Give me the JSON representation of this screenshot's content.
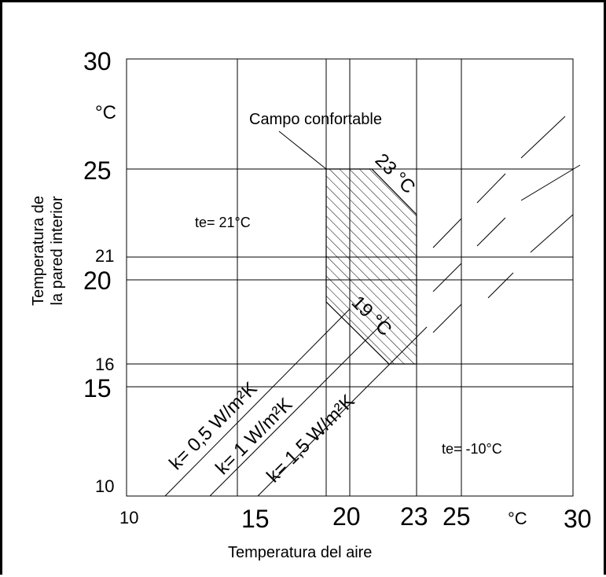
{
  "chart_data": {
    "type": "diagram",
    "xlabel": "Temperatura del aire",
    "ylabel_line1": "Temperatura de",
    "ylabel_line2": "la pared interior",
    "y_unit": "°C",
    "x_unit": "°C",
    "xlim": [
      10,
      30
    ],
    "ylim": [
      10,
      30
    ],
    "x_tick_labels": {
      "t10": "10",
      "t15": "15",
      "t20": "20",
      "t23": "23",
      "t25": "25",
      "t30": "30"
    },
    "y_tick_labels": {
      "t10": "10",
      "t15": "15",
      "t16": "16",
      "t20": "20",
      "t21": "21",
      "t25": "25",
      "t30": "30"
    },
    "x_gridlines": [
      15,
      19,
      20,
      23,
      25
    ],
    "y_gridlines": [
      15,
      16,
      20,
      21,
      25
    ],
    "comfort_zone": {
      "label": "Campo confortable",
      "polygon": [
        [
          19,
          25
        ],
        [
          21,
          25
        ],
        [
          23,
          22.7
        ],
        [
          23,
          16
        ],
        [
          21.8,
          16
        ],
        [
          19,
          19
        ]
      ]
    },
    "annotations": {
      "upper_limit": "23 °C",
      "lower_limit": "19 °C",
      "te_warm": "te= 21°C",
      "te_cold": "te= -10°C",
      "k05": "k= 0,5 W/m²K",
      "k1": "k= 1 W/m²K",
      "k15": "k= 1,5 W/m²K"
    }
  }
}
